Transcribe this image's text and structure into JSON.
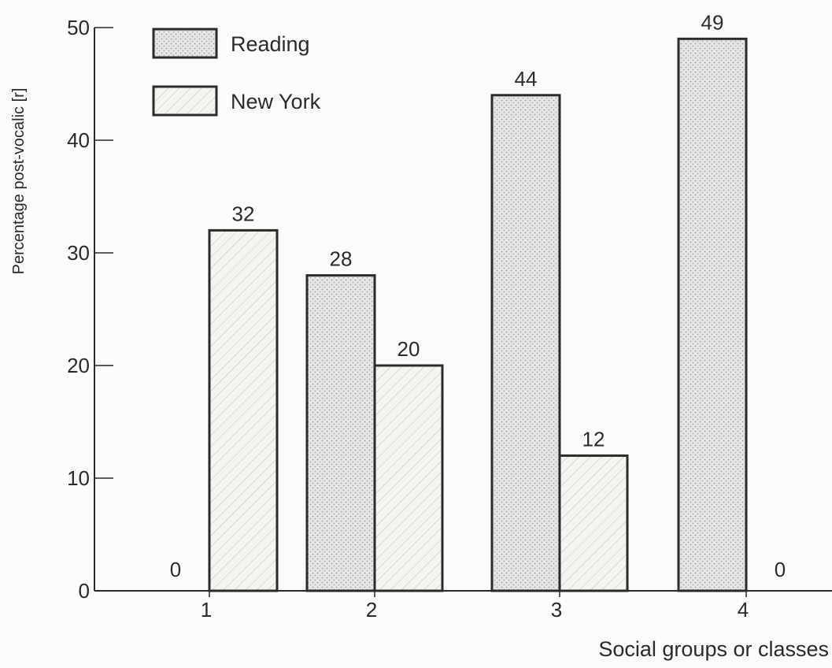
{
  "chart_data": {
    "type": "bar",
    "title": "",
    "xlabel": "Social groups or classes",
    "ylabel": "Percentage post-vocalic [r]",
    "categories": [
      "1",
      "2",
      "3",
      "4"
    ],
    "series": [
      {
        "name": "Reading",
        "values": [
          0,
          28,
          44,
          49
        ],
        "labels": [
          "0",
          "28",
          "44",
          "49"
        ],
        "pattern": "stipple"
      },
      {
        "name": "New York",
        "values": [
          32,
          20,
          12,
          0
        ],
        "labels": [
          "32",
          "20",
          "12",
          "0"
        ],
        "pattern": "hatch"
      }
    ],
    "ylim": [
      0,
      50
    ],
    "yticks": [
      "0",
      "10",
      "20",
      "30",
      "40",
      "50"
    ],
    "grid": false,
    "legend": "top-left",
    "colors": {
      "ink": "#2b2b2b",
      "reading_fill": "#e6e6e6",
      "newyork_fill": "#f4f4f1",
      "background": "#fbfbf9"
    }
  }
}
